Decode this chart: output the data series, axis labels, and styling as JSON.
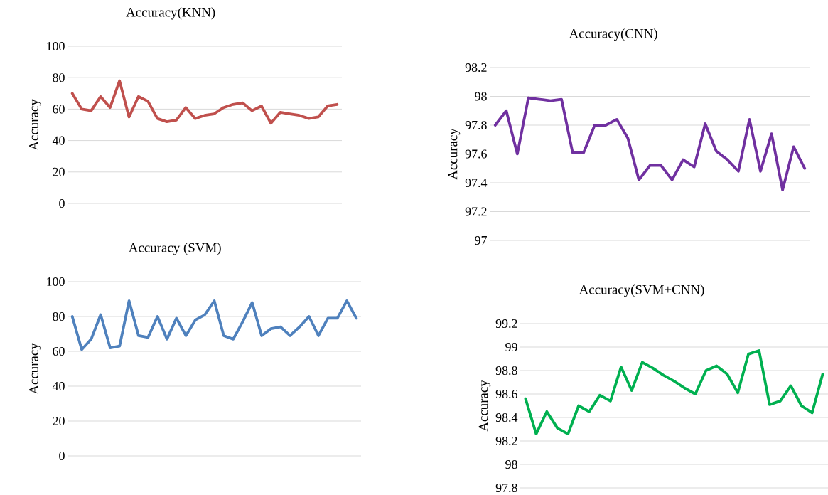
{
  "chart_data": [
    {
      "type": "line",
      "title": "Accuracy(KNN)",
      "ylabel": "Accuracy",
      "categories": [
        null,
        null,
        null,
        null,
        null,
        null,
        null,
        null,
        null,
        null,
        null,
        null,
        null,
        null,
        null,
        null,
        null,
        null,
        null,
        null,
        null,
        null,
        null,
        null,
        null,
        null,
        null,
        null,
        null
      ],
      "series": [
        {
          "color": "#c0504d",
          "values": [
            70,
            60,
            59,
            68,
            61,
            78,
            55,
            68,
            65,
            54,
            52,
            53,
            61,
            54,
            56,
            57,
            61,
            63,
            64,
            59,
            62,
            51,
            58,
            57,
            56,
            54,
            55,
            62,
            63
          ]
        }
      ],
      "ylim": [
        0,
        100
      ],
      "yticks": [
        0,
        20,
        40,
        60,
        80,
        100
      ],
      "grid": "y",
      "tick_labels": "y"
    },
    {
      "type": "line",
      "title": "Accuracy(CNN)",
      "ylabel": "Accuracy",
      "categories": [
        null,
        null,
        null,
        null,
        null,
        null,
        null,
        null,
        null,
        null,
        null,
        null,
        null,
        null,
        null,
        null,
        null,
        null,
        null,
        null,
        null,
        null,
        null,
        null,
        null,
        null,
        null,
        null,
        null
      ],
      "series": [
        {
          "color": "#7030a0",
          "values": [
            97.8,
            97.9,
            97.6,
            97.99,
            97.98,
            97.97,
            97.98,
            97.61,
            97.61,
            97.8,
            97.8,
            97.84,
            97.71,
            97.42,
            97.52,
            97.52,
            97.42,
            97.56,
            97.51,
            97.81,
            97.62,
            97.56,
            97.48,
            97.84,
            97.48,
            97.74,
            97.35,
            97.65,
            97.5
          ]
        }
      ],
      "ylim": [
        97,
        98.2
      ],
      "yticks": [
        97,
        97.2,
        97.4,
        97.6,
        97.8,
        98,
        98.2
      ],
      "grid": "y",
      "tick_labels": "y"
    },
    {
      "type": "line",
      "title": "Accuracy (SVM)",
      "ylabel": "Accuracy",
      "categories": [
        null,
        null,
        null,
        null,
        null,
        null,
        null,
        null,
        null,
        null,
        null,
        null,
        null,
        null,
        null,
        null,
        null,
        null,
        null,
        null,
        null,
        null,
        null,
        null,
        null,
        null,
        null,
        null,
        null,
        null,
        null
      ],
      "series": [
        {
          "color": "#4f81bd",
          "values": [
            80,
            61,
            67,
            81,
            62,
            63,
            89,
            69,
            68,
            80,
            67,
            79,
            69,
            78,
            81,
            89,
            69,
            67,
            77,
            88,
            69,
            73,
            74,
            69,
            74,
            80,
            69,
            79,
            79,
            89,
            79
          ]
        }
      ],
      "ylim": [
        0,
        100
      ],
      "yticks": [
        0,
        20,
        40,
        60,
        80,
        100
      ],
      "grid": "y",
      "tick_labels": "y"
    },
    {
      "type": "line",
      "title": "Accuracy(SVM+CNN)",
      "ylabel": "Accuracy",
      "categories": [
        null,
        null,
        null,
        null,
        null,
        null,
        null,
        null,
        null,
        null,
        null,
        null,
        null,
        null,
        null,
        null,
        null,
        null,
        null,
        null,
        null,
        null,
        null,
        null,
        null,
        null,
        null,
        null,
        null
      ],
      "series": [
        {
          "color": "#00b050",
          "values": [
            98.56,
            98.26,
            98.45,
            98.31,
            98.26,
            98.5,
            98.45,
            98.59,
            98.54,
            98.83,
            98.63,
            98.87,
            98.82,
            98.76,
            98.71,
            98.65,
            98.6,
            98.8,
            98.84,
            98.77,
            98.61,
            98.94,
            98.97,
            98.51,
            98.54,
            98.67,
            98.5,
            98.44,
            98.77
          ]
        }
      ],
      "ylim": [
        97.8,
        99.2
      ],
      "yticks": [
        97.8,
        98,
        98.2,
        98.4,
        98.6,
        98.8,
        99,
        99.2
      ],
      "grid": "y",
      "tick_labels": "y"
    }
  ]
}
